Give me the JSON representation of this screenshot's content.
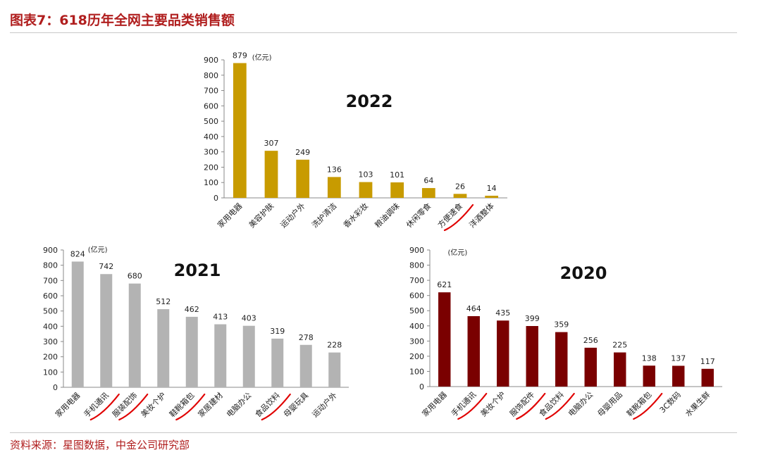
{
  "figure": {
    "title": "图表7：618历年全网主要品类销售额",
    "source": "资料来源：星图数据，中金公司研究部"
  },
  "chart_data": [
    {
      "type": "bar",
      "year_label": "2022",
      "unit": "(亿元)",
      "color": "#c89b00",
      "ylim": [
        0,
        900
      ],
      "yticks": [
        "0",
        "100",
        "200",
        "300",
        "400",
        "500",
        "600",
        "700",
        "800",
        "900"
      ],
      "categories": [
        "家用电器",
        "美容护肤",
        "运动户外",
        "洗护清洁",
        "香水彩妆",
        "粮油调味",
        "休闲零食",
        "方便速食",
        "洋酒整体"
      ],
      "values": [
        879,
        307,
        249,
        136,
        103,
        101,
        64,
        26,
        14
      ],
      "highlighted": [
        "方便速食"
      ]
    },
    {
      "type": "bar",
      "year_label": "2021",
      "unit": "(亿元)",
      "color": "#b3b3b3",
      "ylim": [
        0,
        900
      ],
      "yticks": [
        "0",
        "100",
        "200",
        "300",
        "400",
        "500",
        "600",
        "700",
        "800",
        "900"
      ],
      "categories": [
        "家用电器",
        "手机通讯",
        "服装配饰",
        "美妆个护",
        "鞋靴箱包",
        "家居建材",
        "电脑办公",
        "食品饮料",
        "母婴玩具",
        "运动户外"
      ],
      "values": [
        824,
        742,
        680,
        512,
        462,
        413,
        403,
        319,
        278,
        228
      ],
      "highlighted": [
        "手机通讯",
        "服装配饰",
        "鞋靴箱包",
        "食品饮料"
      ]
    },
    {
      "type": "bar",
      "year_label": "2020",
      "unit": "(亿元)",
      "color": "#7a0000",
      "ylim": [
        0,
        900
      ],
      "yticks": [
        "0",
        "100",
        "200",
        "300",
        "400",
        "500",
        "600",
        "700",
        "800",
        "900"
      ],
      "categories": [
        "家用电器",
        "手机通讯",
        "美妆个护",
        "服饰配件",
        "食品饮料",
        "电脑办公",
        "母婴用品",
        "鞋靴箱包",
        "3C数码",
        "水果生鲜"
      ],
      "values": [
        621,
        464,
        435,
        399,
        359,
        256,
        225,
        138,
        137,
        117
      ],
      "highlighted": [
        "手机通讯",
        "服饰配件",
        "食品饮料",
        "鞋靴箱包"
      ]
    }
  ]
}
